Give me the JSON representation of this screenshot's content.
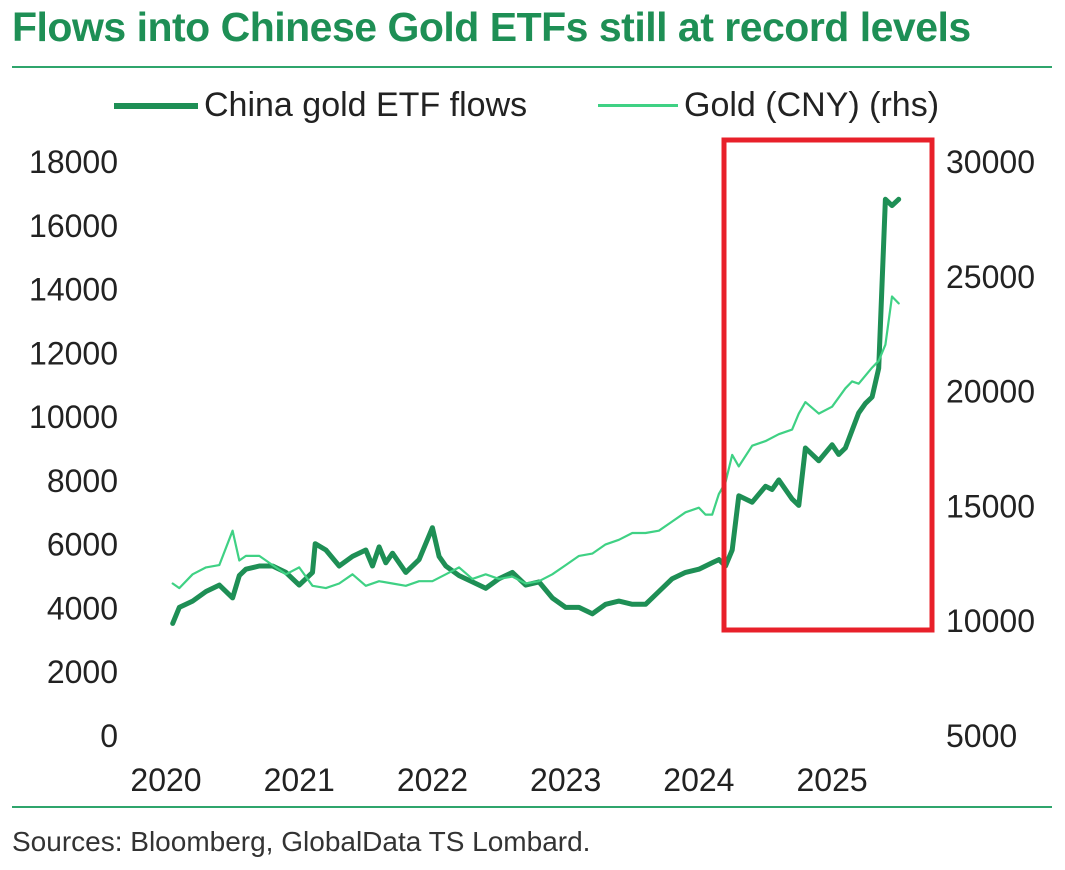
{
  "title": "Flows into Chinese Gold ETFs still at record levels",
  "source": "Sources: Bloomberg, GlobalData TS Lombard.",
  "colors": {
    "title": "#1e8f55",
    "flows": "#1e8f55",
    "gold": "#3fd184",
    "highlight_box": "#e8202a",
    "rule": "#2fa56c"
  },
  "chart_data": {
    "type": "line",
    "x_tick_labels": [
      "2020",
      "2021",
      "2022",
      "2023",
      "2024",
      "2025"
    ],
    "x_range": [
      2020.0,
      2025.75
    ],
    "y_left_tick_labels": [
      "0",
      "2000",
      "4000",
      "6000",
      "8000",
      "10000",
      "12000",
      "14000",
      "16000",
      "18000"
    ],
    "y_left_range": [
      0,
      18000
    ],
    "y_right_tick_labels": [
      "5000",
      "10000",
      "15000",
      "20000",
      "25000",
      "30000"
    ],
    "y_right_range": [
      5000,
      30000
    ],
    "legend_placement": "top",
    "grid": false,
    "highlight": {
      "label": "",
      "x_range": [
        2024.0,
        2025.5
      ],
      "y_left_range": [
        3200,
        18900
      ]
    },
    "series": [
      {
        "name": "China gold ETF flows",
        "axis": "left",
        "x": [
          2020.05,
          2020.1,
          2020.2,
          2020.3,
          2020.4,
          2020.5,
          2020.55,
          2020.6,
          2020.7,
          2020.8,
          2020.9,
          2021.0,
          2021.1,
          2021.12,
          2021.2,
          2021.3,
          2021.4,
          2021.5,
          2021.55,
          2021.6,
          2021.65,
          2021.7,
          2021.8,
          2021.9,
          2022.0,
          2022.05,
          2022.1,
          2022.2,
          2022.3,
          2022.4,
          2022.5,
          2022.6,
          2022.7,
          2022.8,
          2022.9,
          2023.0,
          2023.1,
          2023.2,
          2023.3,
          2023.4,
          2023.5,
          2023.6,
          2023.7,
          2023.8,
          2023.9,
          2024.0,
          2024.1,
          2024.15,
          2024.2,
          2024.25,
          2024.3,
          2024.4,
          2024.5,
          2024.55,
          2024.6,
          2024.7,
          2024.75,
          2024.8,
          2024.9,
          2025.0,
          2025.05,
          2025.1,
          2025.2,
          2025.25,
          2025.3,
          2025.35,
          2025.4,
          2025.45,
          2025.5
        ],
        "values": [
          3500,
          4000,
          4200,
          4500,
          4700,
          4300,
          5000,
          5200,
          5300,
          5300,
          5100,
          4700,
          5100,
          6000,
          5800,
          5300,
          5600,
          5800,
          5300,
          5900,
          5400,
          5700,
          5100,
          5500,
          6500,
          5600,
          5300,
          5000,
          4800,
          4600,
          4900,
          5100,
          4700,
          4800,
          4300,
          4000,
          4000,
          3800,
          4100,
          4200,
          4100,
          4100,
          4500,
          4900,
          5100,
          5200,
          5400,
          5500,
          5300,
          5800,
          7500,
          7300,
          7800,
          7700,
          8000,
          7400,
          7200,
          9000,
          8600,
          9100,
          8800,
          9000,
          10100,
          10400,
          10600,
          11500,
          16800,
          16600,
          16800
        ]
      },
      {
        "name": "Gold (CNY) (rhs)",
        "axis": "right",
        "x": [
          2020.05,
          2020.1,
          2020.2,
          2020.3,
          2020.4,
          2020.5,
          2020.55,
          2020.6,
          2020.7,
          2020.8,
          2020.9,
          2021.0,
          2021.1,
          2021.2,
          2021.3,
          2021.4,
          2021.5,
          2021.6,
          2021.7,
          2021.8,
          2021.9,
          2022.0,
          2022.1,
          2022.2,
          2022.3,
          2022.4,
          2022.5,
          2022.6,
          2022.7,
          2022.8,
          2022.9,
          2023.0,
          2023.1,
          2023.2,
          2023.3,
          2023.4,
          2023.5,
          2023.6,
          2023.7,
          2023.8,
          2023.9,
          2024.0,
          2024.05,
          2024.1,
          2024.15,
          2024.2,
          2024.25,
          2024.3,
          2024.4,
          2024.5,
          2024.6,
          2024.7,
          2024.75,
          2024.8,
          2024.9,
          2025.0,
          2025.1,
          2025.15,
          2025.2,
          2025.3,
          2025.35,
          2025.4,
          2025.45,
          2025.5
        ],
        "values": [
          11600,
          11400,
          12000,
          12300,
          12400,
          13900,
          12600,
          12800,
          12800,
          12400,
          12000,
          12300,
          11500,
          11400,
          11600,
          12000,
          11500,
          11700,
          11600,
          11500,
          11700,
          11700,
          12000,
          12300,
          11800,
          12000,
          11800,
          11900,
          11600,
          11700,
          12000,
          12400,
          12800,
          12900,
          13300,
          13500,
          13800,
          13800,
          13900,
          14300,
          14700,
          14900,
          14600,
          14600,
          15500,
          16000,
          17200,
          16700,
          17600,
          17800,
          18100,
          18300,
          19000,
          19500,
          19000,
          19300,
          20100,
          20400,
          20300,
          21000,
          21300,
          22000,
          24100,
          23800
        ]
      }
    ]
  }
}
